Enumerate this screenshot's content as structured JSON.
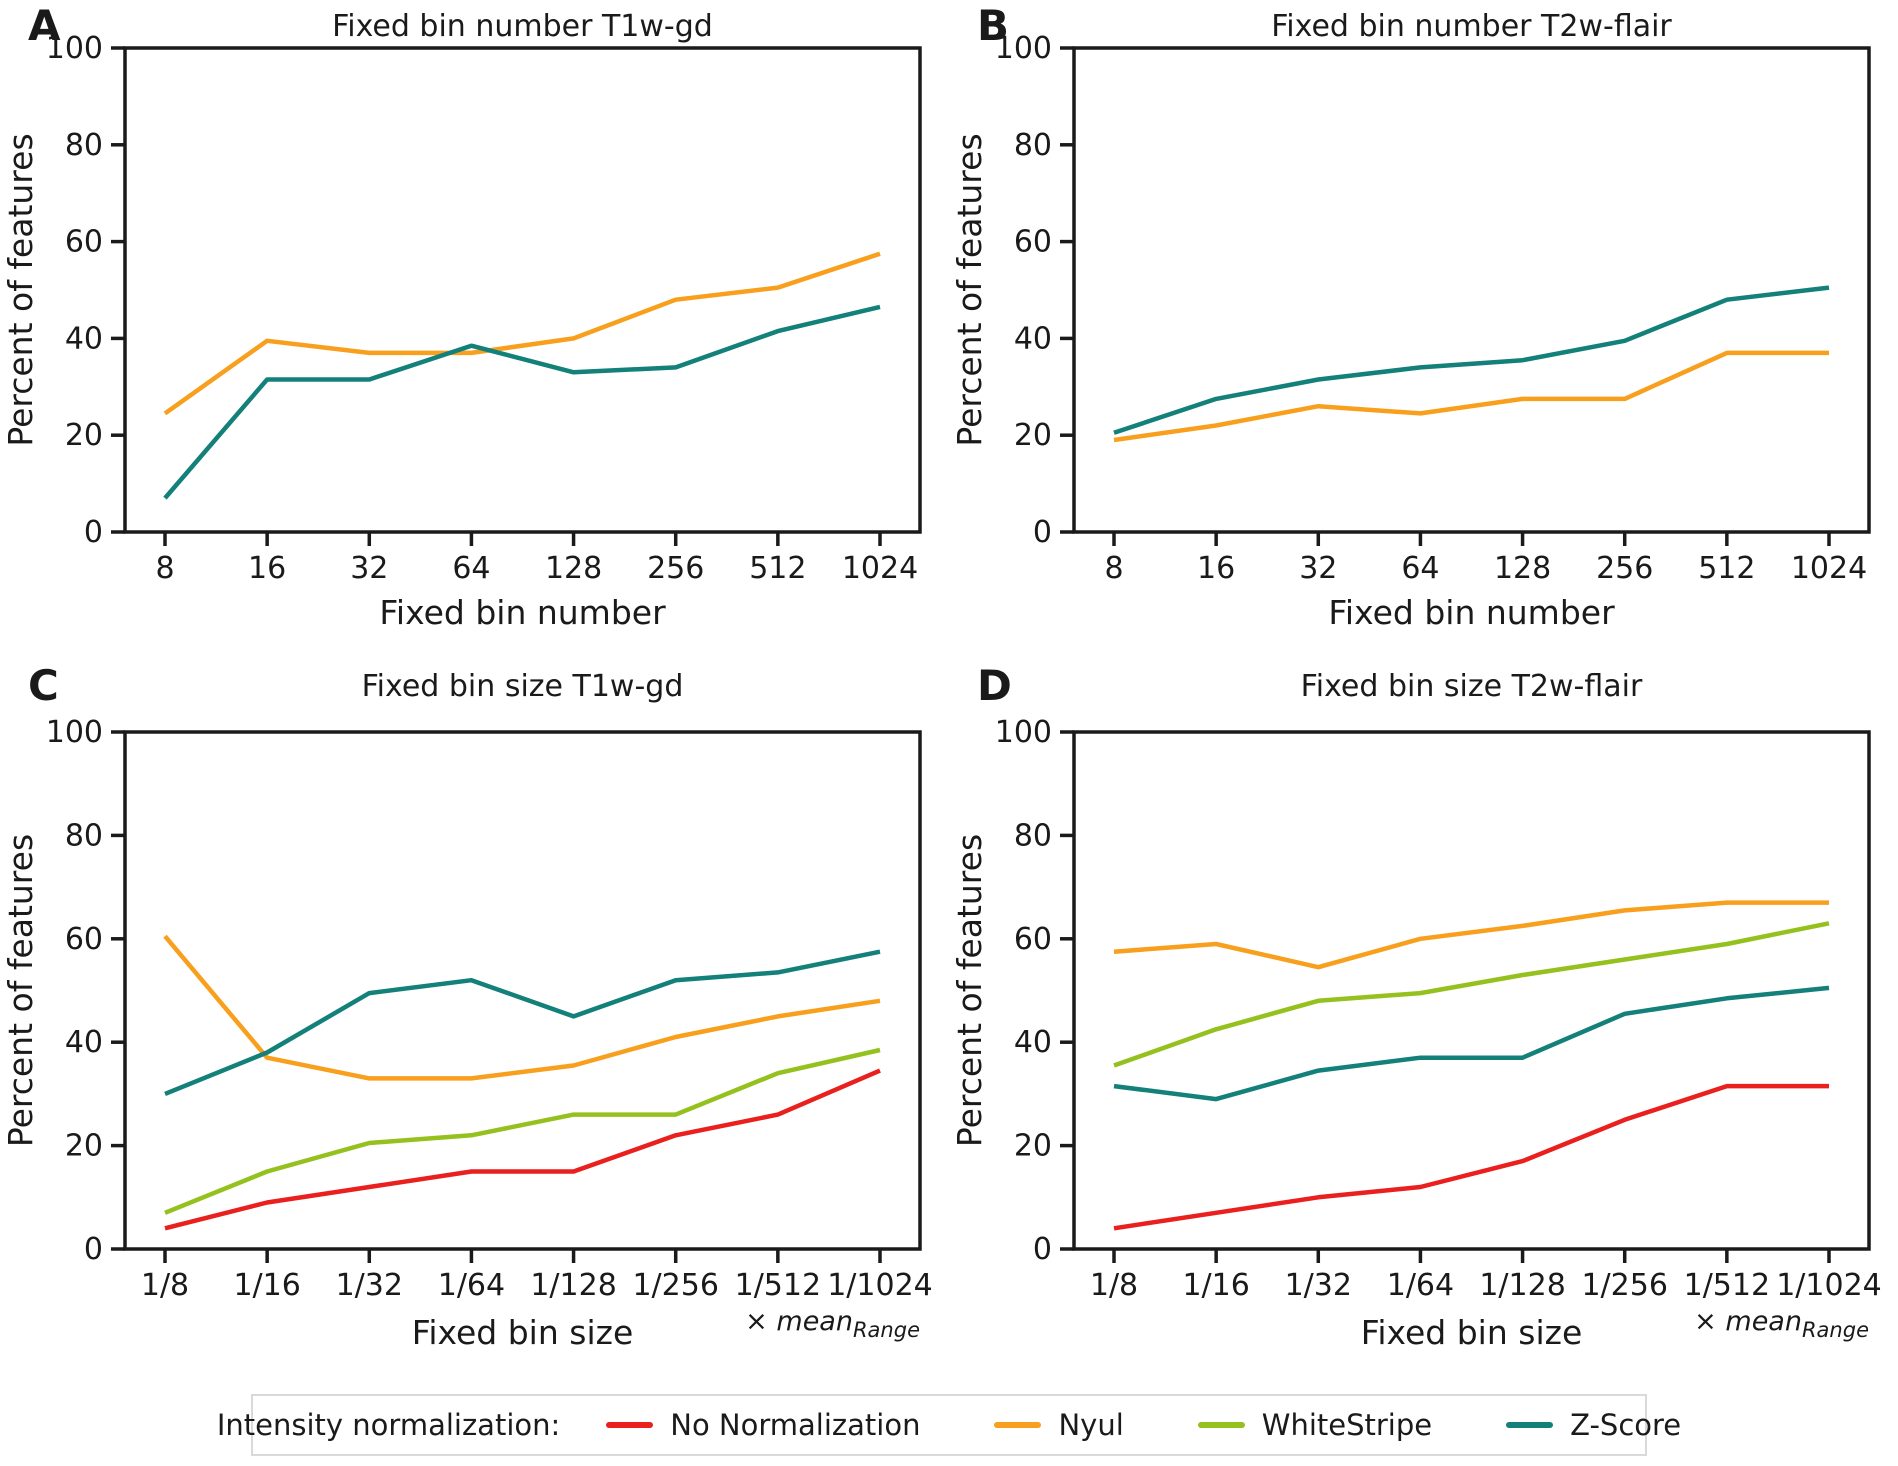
{
  "legend": {
    "title": "Intensity normalization:",
    "entries": [
      {
        "label": "No Normalization",
        "color": "#e9201d"
      },
      {
        "label": "Nyul",
        "color": "#f8a01d"
      },
      {
        "label": "WhiteStripe",
        "color": "#95c11f"
      },
      {
        "label": "Z-Score",
        "color": "#13807a"
      }
    ]
  },
  "chart_data": [
    {
      "type": "line",
      "letter": "A",
      "title": "Fixed bin number T1w-gd",
      "xlabel": "Fixed bin number",
      "ylabel": "Percent of features",
      "categories": [
        "8",
        "16",
        "32",
        "64",
        "128",
        "256",
        "512",
        "1024"
      ],
      "ylim": [
        0,
        100
      ],
      "yticks": [
        0,
        20,
        40,
        60,
        80,
        100
      ],
      "grid": false,
      "legend_position": "figure-bottom",
      "series": [
        {
          "name": "Nyul",
          "color": "#f8a01d",
          "values": [
            24.5,
            39.5,
            37,
            37,
            40,
            48,
            50.5,
            57.5
          ]
        },
        {
          "name": "Z-Score",
          "color": "#13807a",
          "values": [
            7,
            31.5,
            31.5,
            38.5,
            33,
            34,
            41.5,
            46.5
          ]
        }
      ]
    },
    {
      "type": "line",
      "letter": "B",
      "title": "Fixed bin number T2w-flair",
      "xlabel": "Fixed bin number",
      "ylabel": "Percent of features",
      "categories": [
        "8",
        "16",
        "32",
        "64",
        "128",
        "256",
        "512",
        "1024"
      ],
      "ylim": [
        0,
        100
      ],
      "yticks": [
        0,
        20,
        40,
        60,
        80,
        100
      ],
      "grid": false,
      "legend_position": "figure-bottom",
      "series": [
        {
          "name": "Nyul",
          "color": "#f8a01d",
          "values": [
            19,
            22,
            26,
            24.5,
            27.5,
            27.5,
            37,
            37
          ]
        },
        {
          "name": "Z-Score",
          "color": "#13807a",
          "values": [
            20.5,
            27.5,
            31.5,
            34,
            35.5,
            39.5,
            48,
            50.5
          ]
        }
      ]
    },
    {
      "type": "line",
      "letter": "C",
      "title": "Fixed bin size T1w-gd",
      "xlabel": "Fixed bin size",
      "ylabel": "Percent of features",
      "x_annotation": {
        "times": "× ",
        "word": "mean",
        "sub": "Range"
      },
      "categories": [
        "1/8",
        "1/16",
        "1/32",
        "1/64",
        "1/128",
        "1/256",
        "1/512",
        "1/1024"
      ],
      "ylim": [
        0,
        100
      ],
      "yticks": [
        0,
        20,
        40,
        60,
        80,
        100
      ],
      "grid": false,
      "legend_position": "figure-bottom",
      "series": [
        {
          "name": "No Normalization",
          "color": "#e9201d",
          "values": [
            4,
            9,
            12,
            15,
            15,
            22,
            26,
            34.5
          ]
        },
        {
          "name": "Nyul",
          "color": "#f8a01d",
          "values": [
            60.5,
            37,
            33,
            33,
            35.5,
            41,
            45,
            48
          ]
        },
        {
          "name": "WhiteStripe",
          "color": "#95c11f",
          "values": [
            7,
            15,
            20.5,
            22,
            26,
            26,
            34,
            38.5
          ]
        },
        {
          "name": "Z-Score",
          "color": "#13807a",
          "values": [
            30,
            38,
            49.5,
            52,
            45,
            52,
            53.5,
            57.5
          ]
        }
      ]
    },
    {
      "type": "line",
      "letter": "D",
      "title": "Fixed bin size T2w-flair",
      "xlabel": "Fixed bin size",
      "ylabel": "Percent of features",
      "x_annotation": {
        "times": "× ",
        "word": "mean",
        "sub": "Range"
      },
      "categories": [
        "1/8",
        "1/16",
        "1/32",
        "1/64",
        "1/128",
        "1/256",
        "1/512",
        "1/1024"
      ],
      "ylim": [
        0,
        100
      ],
      "yticks": [
        0,
        20,
        40,
        60,
        80,
        100
      ],
      "grid": false,
      "legend_position": "figure-bottom",
      "series": [
        {
          "name": "No Normalization",
          "color": "#e9201d",
          "values": [
            4,
            7,
            10,
            12,
            17,
            25,
            31.5,
            31.5
          ]
        },
        {
          "name": "Nyul",
          "color": "#f8a01d",
          "values": [
            57.5,
            59,
            54.5,
            60,
            62.5,
            65.5,
            67,
            67
          ]
        },
        {
          "name": "WhiteStripe",
          "color": "#95c11f",
          "values": [
            35.5,
            42.5,
            48,
            49.5,
            53,
            56,
            59,
            63
          ]
        },
        {
          "name": "Z-Score",
          "color": "#13807a",
          "values": [
            31.5,
            29,
            34.5,
            37,
            37,
            45.5,
            48.5,
            50.5
          ]
        }
      ]
    }
  ]
}
